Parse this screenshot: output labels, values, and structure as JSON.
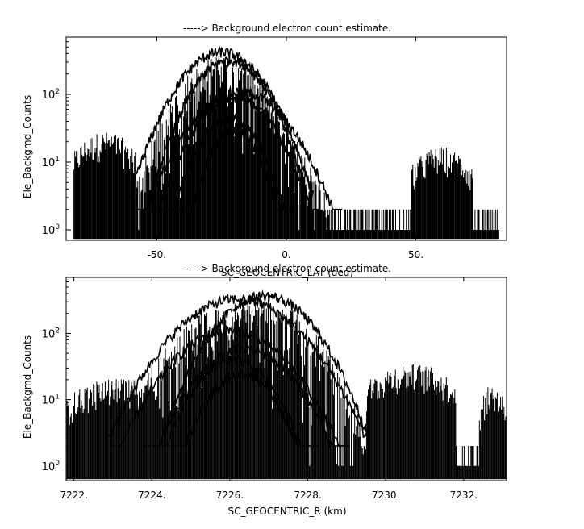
{
  "chart_data": [
    {
      "type": "line",
      "title": "-----> Background electron count estimate.",
      "xlabel": "SC_GEOCENTRIC_LAT (deg)",
      "ylabel": "Ele_Backgmd_Counts",
      "xlim": [
        -85,
        85
      ],
      "ylim": [
        0.7,
        700
      ],
      "yscale": "log",
      "x_ticks": [
        -50,
        0,
        50
      ],
      "x_tick_labels": [
        "-50.",
        "0.",
        "50."
      ],
      "y_ticks": [
        1,
        10,
        100
      ],
      "y_tick_labels": [
        "10^0",
        "10^1",
        "10^2"
      ],
      "grid": false,
      "data_x_range": [
        -82,
        82
      ],
      "series": [
        {
          "peak_x": -25,
          "peak_y": 420,
          "width": 16,
          "floor": 2
        },
        {
          "peak_x": -22,
          "peak_y": 320,
          "width": 14,
          "floor": 2
        },
        {
          "peak_x": -18,
          "peak_y": 110,
          "width": 18,
          "floor": 2
        },
        {
          "peak_x": -20,
          "peak_y": 90,
          "width": 15,
          "floor": 2
        },
        {
          "peak_x": -22,
          "peak_y": 45,
          "width": 12,
          "floor": 2
        },
        {
          "peak_x": -20,
          "peak_y": 30,
          "width": 10,
          "floor": 2
        }
      ],
      "background_bands": [
        {
          "x_start": -82,
          "x_end": -58,
          "level": 20
        },
        {
          "x_start": -55,
          "x_end": -45,
          "level": 8
        },
        {
          "x_start": 48,
          "x_end": 72,
          "level": 12
        }
      ]
    },
    {
      "type": "line",
      "title": "-----> Background electron count estimate.",
      "xlabel": "SC_GEOCENTRIC_R (km)",
      "ylabel": "Ele_Backgmd_Counts",
      "xlim": [
        7221.8,
        7233.1
      ],
      "ylim": [
        0.6,
        700
      ],
      "yscale": "log",
      "x_ticks": [
        7222,
        7224,
        7226,
        7228,
        7230,
        7232
      ],
      "x_tick_labels": [
        "7222.",
        "7224.",
        "7226.",
        "7228.",
        "7230.",
        "7232."
      ],
      "y_ticks": [
        1,
        10,
        100
      ],
      "y_tick_labels": [
        "10^0",
        "10^1",
        "10^2"
      ],
      "grid": false,
      "data_x_range": [
        7221.8,
        7233.1
      ],
      "series": [
        {
          "peak_x": 7226.9,
          "peak_y": 370,
          "width": 1.2,
          "floor": 2
        },
        {
          "peak_x": 7226.2,
          "peak_y": 330,
          "width": 1.5,
          "floor": 2
        },
        {
          "peak_x": 7226.0,
          "peak_y": 110,
          "width": 1.4,
          "floor": 2
        },
        {
          "peak_x": 7226.4,
          "peak_y": 60,
          "width": 1.2,
          "floor": 2
        },
        {
          "peak_x": 7226.1,
          "peak_y": 40,
          "width": 1.0,
          "floor": 2
        },
        {
          "peak_x": 7226.3,
          "peak_y": 25,
          "width": 0.9,
          "floor": 2
        }
      ],
      "background_bands": [
        {
          "x_start": 7221.8,
          "x_end": 7224.5,
          "level": 15
        },
        {
          "x_start": 7229.5,
          "x_end": 7231.8,
          "level": 25
        },
        {
          "x_start": 7232.4,
          "x_end": 7233.1,
          "level": 12
        }
      ]
    }
  ]
}
